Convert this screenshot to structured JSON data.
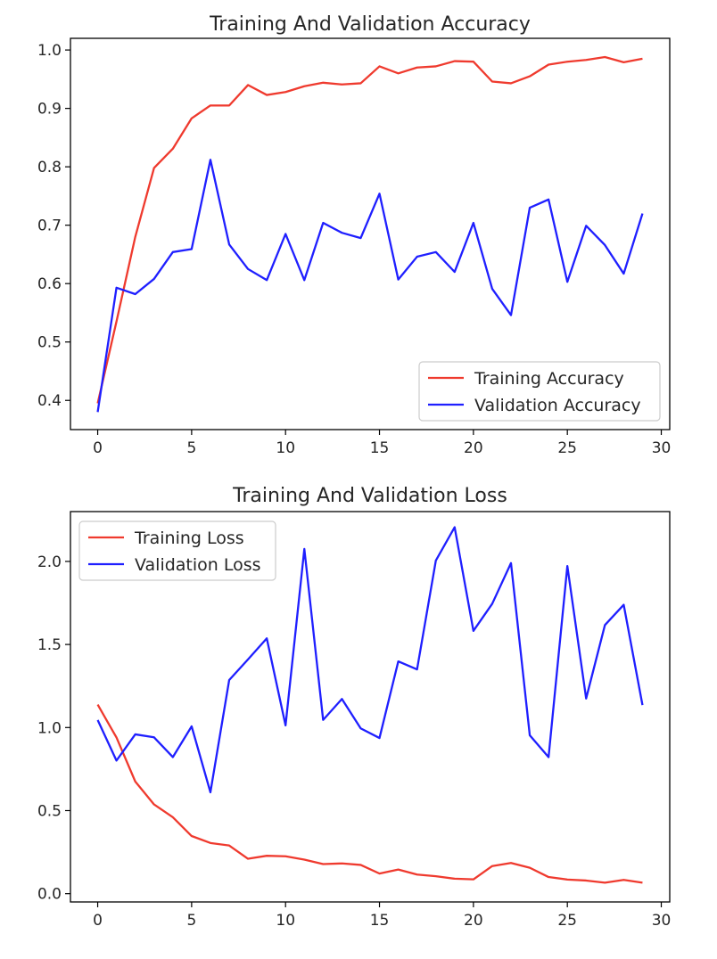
{
  "chart_data": [
    {
      "type": "line",
      "title": "Training And Validation Accuracy",
      "xlabel": "",
      "ylabel": "",
      "xlim": [
        -1.45,
        30.45
      ],
      "ylim": [
        0.35,
        1.02
      ],
      "xticks": [
        0,
        5,
        10,
        15,
        20,
        25,
        30
      ],
      "xtick_labels": [
        "0",
        "5",
        "10",
        "15",
        "20",
        "25",
        "30"
      ],
      "yticks": [
        0.4,
        0.5,
        0.6,
        0.7,
        0.8,
        0.9,
        1.0
      ],
      "ytick_labels": [
        "0.4",
        "0.5",
        "0.6",
        "0.7",
        "0.8",
        "0.9",
        "1.0"
      ],
      "grid": false,
      "legend_position": "lower-right",
      "x": [
        0,
        1,
        2,
        3,
        4,
        5,
        6,
        7,
        8,
        9,
        10,
        11,
        12,
        13,
        14,
        15,
        16,
        17,
        18,
        19,
        20,
        21,
        22,
        23,
        24,
        25,
        26,
        27,
        28,
        29
      ],
      "series": [
        {
          "name": "Training Accuracy",
          "color": "#ef3a2e",
          "values": [
            0.395,
            0.535,
            0.68,
            0.798,
            0.831,
            0.883,
            0.905,
            0.905,
            0.94,
            0.923,
            0.928,
            0.938,
            0.944,
            0.941,
            0.943,
            0.972,
            0.96,
            0.97,
            0.972,
            0.981,
            0.98,
            0.946,
            0.943,
            0.955,
            0.975,
            0.98,
            0.983,
            0.988,
            0.979,
            0.985
          ]
        },
        {
          "name": "Validation Accuracy",
          "color": "#1f1fff",
          "values": [
            0.38,
            0.593,
            0.582,
            0.608,
            0.654,
            0.659,
            0.812,
            0.667,
            0.625,
            0.606,
            0.685,
            0.606,
            0.704,
            0.687,
            0.678,
            0.754,
            0.607,
            0.646,
            0.654,
            0.62,
            0.704,
            0.591,
            0.546,
            0.73,
            0.744,
            0.603,
            0.699,
            0.666,
            0.617,
            0.72
          ]
        }
      ]
    },
    {
      "type": "line",
      "title": "Training And Validation Loss",
      "xlabel": "",
      "ylabel": "",
      "xlim": [
        -1.45,
        30.45
      ],
      "ylim": [
        -0.05,
        2.3
      ],
      "xticks": [
        0,
        5,
        10,
        15,
        20,
        25,
        30
      ],
      "xtick_labels": [
        "0",
        "5",
        "10",
        "15",
        "20",
        "25",
        "30"
      ],
      "yticks": [
        0.0,
        0.5,
        1.0,
        1.5,
        2.0
      ],
      "ytick_labels": [
        "0.0",
        "0.5",
        "1.0",
        "1.5",
        "2.0"
      ],
      "grid": false,
      "legend_position": "upper-left",
      "x": [
        0,
        1,
        2,
        3,
        4,
        5,
        6,
        7,
        8,
        9,
        10,
        11,
        12,
        13,
        14,
        15,
        16,
        17,
        18,
        19,
        20,
        21,
        22,
        23,
        24,
        25,
        26,
        27,
        28,
        29
      ],
      "series": [
        {
          "name": "Training Loss",
          "color": "#ef3a2e",
          "values": [
            1.138,
            0.94,
            0.675,
            0.537,
            0.46,
            0.347,
            0.305,
            0.29,
            0.21,
            0.228,
            0.225,
            0.205,
            0.178,
            0.182,
            0.173,
            0.121,
            0.145,
            0.115,
            0.105,
            0.09,
            0.086,
            0.166,
            0.185,
            0.156,
            0.1,
            0.085,
            0.079,
            0.066,
            0.083,
            0.066
          ]
        },
        {
          "name": "Validation Loss",
          "color": "#1f1fff",
          "values": [
            1.045,
            0.801,
            0.959,
            0.941,
            0.822,
            1.007,
            0.61,
            1.286,
            1.41,
            1.537,
            1.013,
            2.075,
            1.046,
            1.172,
            0.995,
            0.937,
            1.398,
            1.35,
            2.005,
            2.206,
            1.582,
            1.745,
            1.99,
            0.953,
            0.822,
            1.972,
            1.175,
            1.617,
            1.739,
            1.135
          ]
        }
      ]
    }
  ]
}
